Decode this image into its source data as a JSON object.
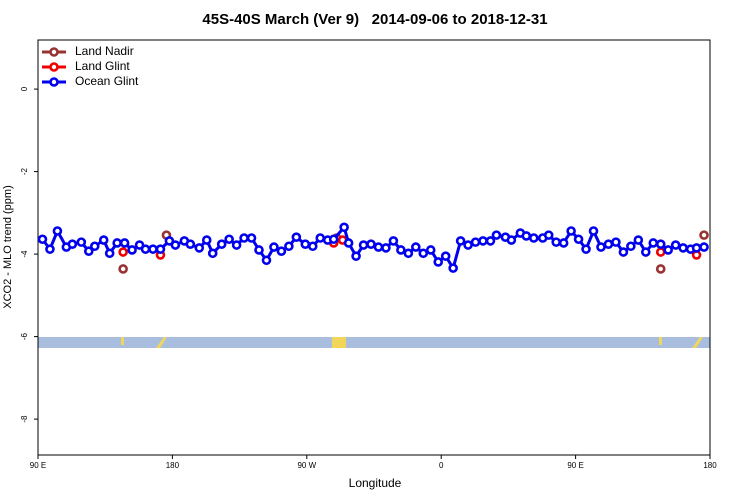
{
  "chart_data": {
    "type": "line",
    "title": "45S-40S March (Ver 9)   2014-09-06 to 2018-12-31",
    "xlabel": "Longitude",
    "ylabel": "XCO2 - MLO trend (ppm)",
    "xlim": [
      90,
      540
    ],
    "ylim": [
      -8.87,
      1.19
    ],
    "xticks": [
      {
        "value": 90,
        "label": "90 E"
      },
      180,
      {
        "value": 270,
        "label": "90 W"
      },
      {
        "value": 360,
        "label": "0"
      },
      {
        "value": 450,
        "label": "90 E"
      },
      {
        "value": 540,
        "label": "180"
      }
    ],
    "yticks": [
      0,
      -2,
      -4,
      -6,
      -8
    ],
    "legend": "top-left",
    "series": [
      {
        "name": "Land Nadir",
        "color": "#993333",
        "line": false,
        "x": [
          147,
          176,
          290,
          507,
          536
        ],
        "values": [
          -4.36,
          -3.54,
          -3.61,
          -4.36,
          -3.54
        ]
      },
      {
        "name": "Land Glint",
        "color": "#ee0000",
        "line": false,
        "x": [
          147,
          172,
          288,
          294,
          507,
          531
        ],
        "values": [
          -3.95,
          -4.02,
          -3.73,
          -3.66,
          -3.95,
          -4.02
        ]
      },
      {
        "name": "Ocean Glint",
        "color": "#0000ee",
        "line": true,
        "x": [
          93,
          98,
          103,
          109,
          113,
          119,
          124,
          128,
          134,
          138,
          143,
          148,
          153,
          158,
          162,
          167,
          172,
          178,
          182,
          188,
          192,
          198,
          203,
          207,
          213,
          218,
          223,
          228,
          233,
          238,
          243,
          248,
          253,
          258,
          263,
          269,
          274,
          279,
          284,
          288,
          295,
          298,
          303,
          308,
          313,
          318,
          323,
          328,
          333,
          338,
          343,
          348,
          353,
          358,
          363,
          368,
          373,
          378,
          383,
          388,
          393,
          397,
          403,
          407,
          413,
          417,
          422,
          428,
          432,
          437,
          442,
          447,
          452,
          457,
          462,
          467,
          472,
          477,
          482,
          487,
          492,
          497,
          502,
          507,
          512,
          517,
          522,
          527,
          531,
          536
        ],
        "values": [
          -3.64,
          -3.88,
          -3.44,
          -3.83,
          -3.76,
          -3.71,
          -3.93,
          -3.81,
          -3.66,
          -3.98,
          -3.73,
          -3.73,
          -3.9,
          -3.78,
          -3.88,
          -3.88,
          -3.88,
          -3.68,
          -3.78,
          -3.68,
          -3.76,
          -3.85,
          -3.66,
          -3.98,
          -3.76,
          -3.64,
          -3.78,
          -3.61,
          -3.61,
          -3.9,
          -4.15,
          -3.83,
          -3.93,
          -3.81,
          -3.59,
          -3.76,
          -3.81,
          -3.61,
          -3.66,
          -3.64,
          -3.35,
          -3.73,
          -4.05,
          -3.78,
          -3.76,
          -3.83,
          -3.85,
          -3.68,
          -3.9,
          -3.98,
          -3.83,
          -3.98,
          -3.9,
          -4.19,
          -4.05,
          -4.34,
          -3.68,
          -3.78,
          -3.71,
          -3.68,
          -3.68,
          -3.54,
          -3.59,
          -3.66,
          -3.49,
          -3.56,
          -3.61,
          -3.61,
          -3.54,
          -3.71,
          -3.73,
          -3.44,
          -3.64,
          -3.88,
          -3.44,
          -3.83,
          -3.76,
          -3.71,
          -3.95,
          -3.81,
          -3.66,
          -3.95,
          -3.73,
          -3.76,
          -3.9,
          -3.78,
          -3.85,
          -3.88,
          -3.85,
          -3.83
        ]
      }
    ]
  }
}
